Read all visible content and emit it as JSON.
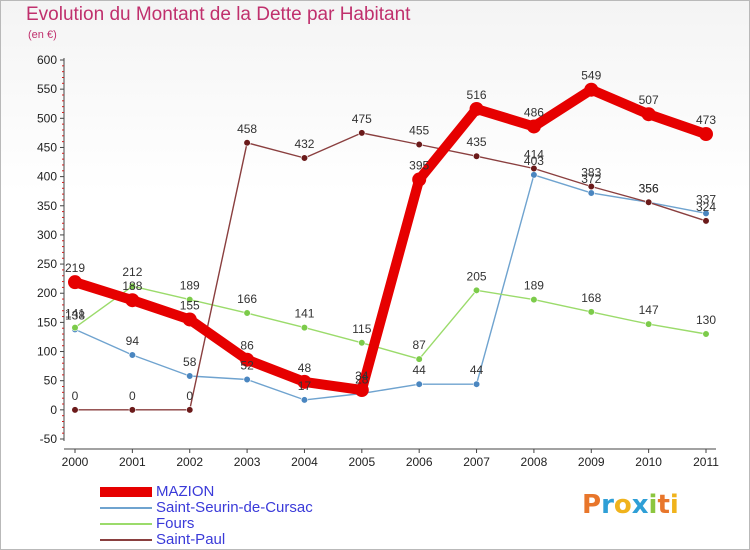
{
  "header": {
    "title": "Evolution du Montant de la Dette par Habitant",
    "unit": "(en €)"
  },
  "brand": {
    "letters": [
      "P",
      "r",
      "o",
      "x",
      "i",
      "t",
      "i"
    ],
    "colors": [
      "#e8762b",
      "#2f9fd6",
      "#f0b31c",
      "#2f9fd6",
      "#8cc63f",
      "#e8762b",
      "#f0b31c"
    ]
  },
  "chart_data": {
    "type": "line",
    "title": "Evolution du Montant de la Dette par Habitant",
    "ylabel": "(en €)",
    "xlabel": "",
    "x": [
      "2000",
      "2001",
      "2002",
      "2003",
      "2004",
      "2005",
      "2006",
      "2007",
      "2008",
      "2009",
      "2010",
      "2011"
    ],
    "y_ticks": [
      -50,
      0,
      50,
      100,
      150,
      200,
      250,
      300,
      350,
      400,
      450,
      500,
      550,
      600
    ],
    "ylim": [
      -50,
      600
    ],
    "grid": false,
    "legend_position": "bottom-left",
    "series": [
      {
        "name": "MAZION",
        "color": "#e60000",
        "emphasis": true,
        "values": [
          219,
          188,
          155,
          86,
          48,
          34,
          395,
          516,
          486,
          549,
          507,
          473
        ],
        "labels": [
          "219",
          "188",
          "155",
          "86",
          "48",
          "34",
          "395",
          "516",
          "486",
          "549",
          "507",
          "473"
        ]
      },
      {
        "name": "Saint-Seurin-de-Cursac",
        "color": "#6fa3cf",
        "dot": "#4a86c0",
        "emphasis": false,
        "values": [
          138,
          94,
          58,
          52,
          17,
          28,
          44,
          44,
          403,
          372,
          356,
          337
        ],
        "labels": [
          "138",
          "94",
          "58",
          "52",
          "17",
          "28",
          "44",
          "44",
          "403",
          "372",
          "356",
          "337"
        ]
      },
      {
        "name": "Fours",
        "color": "#9bdb6b",
        "dot": "#7ccb4a",
        "emphasis": false,
        "values": [
          141,
          212,
          189,
          166,
          141,
          115,
          87,
          205,
          189,
          168,
          147,
          130
        ],
        "labels": [
          "141",
          "212",
          "189",
          "166",
          "141",
          "115",
          "87",
          "205",
          "189",
          "168",
          "147",
          "130"
        ]
      },
      {
        "name": "Saint-Paul",
        "color": "#8a3f3f",
        "dot": "#6b1a1a",
        "emphasis": false,
        "values": [
          0,
          0,
          0,
          458,
          432,
          475,
          455,
          435,
          414,
          383,
          356,
          324
        ],
        "labels": [
          "0",
          "0",
          "0",
          "458",
          "432",
          "475",
          "455",
          "435",
          "414",
          "383",
          "356",
          "324"
        ]
      }
    ]
  }
}
